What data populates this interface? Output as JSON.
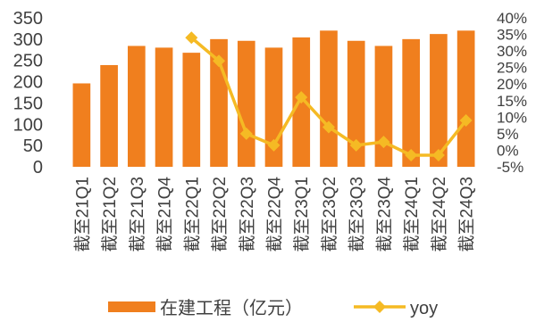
{
  "chart_data": {
    "type": "bar",
    "categories": [
      "截至21Q1",
      "截至21Q2",
      "截至21Q3",
      "截至21Q4",
      "截至22Q1",
      "截至22Q2",
      "截至22Q3",
      "截至22Q4",
      "截至23Q1",
      "截至23Q2",
      "截至23Q3",
      "截至23Q4",
      "截至24Q1",
      "截至24Q2",
      "截至24Q3"
    ],
    "series": [
      {
        "name": "在建工程（亿元）",
        "type": "bar",
        "axis": "left",
        "color": "#F07F1E",
        "values": [
          196,
          239,
          284,
          280,
          268,
          300,
          296,
          280,
          304,
          320,
          296,
          284,
          300,
          312,
          320
        ]
      },
      {
        "name": "yoy",
        "type": "line",
        "axis": "right",
        "color": "#F5BA24",
        "marker": "diamond",
        "values": [
          null,
          null,
          null,
          null,
          34,
          27,
          5,
          1.5,
          16,
          7,
          1.5,
          2.5,
          -1.5,
          -1.5,
          9
        ]
      }
    ],
    "y_left": {
      "ylim": [
        0,
        350
      ],
      "ticks": [
        0,
        50,
        100,
        150,
        200,
        250,
        300,
        350
      ],
      "tick_labels": [
        "0",
        "50",
        "100",
        "150",
        "200",
        "250",
        "300",
        "350"
      ]
    },
    "y_right": {
      "ylim": [
        -5,
        40
      ],
      "ticks": [
        -5,
        0,
        5,
        10,
        15,
        20,
        25,
        30,
        35,
        40
      ],
      "tick_labels": [
        "-5%",
        "0%",
        "5%",
        "10%",
        "15%",
        "20%",
        "25%",
        "30%",
        "35%",
        "40%"
      ]
    },
    "title": "",
    "xlabel": "",
    "ylabel": "",
    "grid": false,
    "legend_position": "bottom"
  }
}
